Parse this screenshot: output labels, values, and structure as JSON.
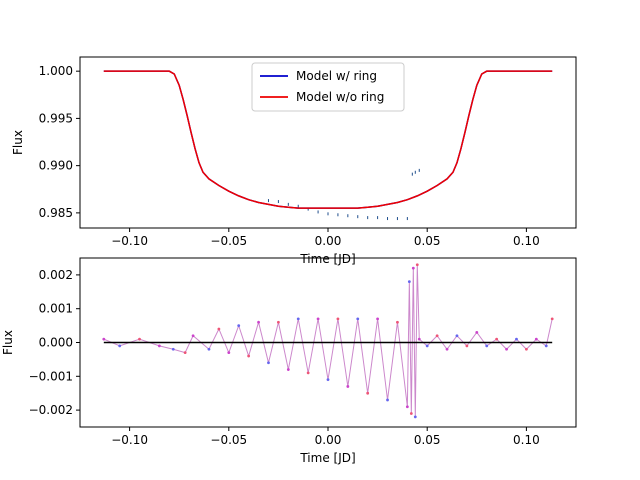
{
  "chart_data": [
    {
      "type": "line",
      "xlabel": "Time [JD]",
      "ylabel": "Flux",
      "xlim": [
        -0.125,
        0.125
      ],
      "ylim": [
        0.9834,
        1.0015
      ],
      "xticks": [
        -0.1,
        -0.05,
        0.0,
        0.05,
        0.1
      ],
      "xtick_labels": [
        "−0.10",
        "−0.05",
        "0.00",
        "0.05",
        "0.10"
      ],
      "yticks": [
        0.985,
        0.99,
        0.995,
        1.0
      ],
      "ytick_labels": [
        "0.985",
        "0.990",
        "0.995",
        "1.000"
      ],
      "grid": false,
      "legend_position": "top-center",
      "series": [
        {
          "name": "Model w/ ring",
          "color": "#0000cc",
          "x": [
            -0.113,
            -0.09,
            -0.08,
            -0.0775,
            -0.075,
            -0.073,
            -0.071,
            -0.069,
            -0.067,
            -0.065,
            -0.063,
            -0.06,
            -0.055,
            -0.05,
            -0.045,
            -0.04,
            -0.035,
            -0.03,
            -0.025,
            -0.02,
            -0.015,
            -0.01,
            -0.005,
            0.0,
            0.005,
            0.01,
            0.015,
            0.02,
            0.025,
            0.03,
            0.035,
            0.04,
            0.045,
            0.05,
            0.055,
            0.06,
            0.063,
            0.065,
            0.067,
            0.069,
            0.071,
            0.073,
            0.075,
            0.0775,
            0.08,
            0.09,
            0.113
          ],
          "y": [
            1.0,
            1.0,
            1.0,
            0.9997,
            0.9985,
            0.997,
            0.9953,
            0.9935,
            0.9918,
            0.9903,
            0.9893,
            0.9886,
            0.9879,
            0.9873,
            0.9868,
            0.9864,
            0.9861,
            0.9859,
            0.9857,
            0.9856,
            0.9855,
            0.9855,
            0.9855,
            0.9855,
            0.9855,
            0.9855,
            0.9855,
            0.9856,
            0.9857,
            0.9859,
            0.9861,
            0.9864,
            0.9868,
            0.9873,
            0.9879,
            0.9886,
            0.9893,
            0.9903,
            0.9918,
            0.9935,
            0.9953,
            0.997,
            0.9985,
            0.9997,
            1.0,
            1.0,
            1.0
          ]
        },
        {
          "name": "Model w/o ring",
          "color": "#ee0000",
          "x": [
            -0.113,
            -0.09,
            -0.08,
            -0.0775,
            -0.075,
            -0.073,
            -0.071,
            -0.069,
            -0.067,
            -0.065,
            -0.063,
            -0.06,
            -0.055,
            -0.05,
            -0.045,
            -0.04,
            -0.035,
            -0.03,
            -0.025,
            -0.02,
            -0.015,
            -0.01,
            -0.005,
            0.0,
            0.005,
            0.01,
            0.015,
            0.02,
            0.025,
            0.03,
            0.035,
            0.04,
            0.045,
            0.05,
            0.055,
            0.06,
            0.063,
            0.065,
            0.067,
            0.069,
            0.071,
            0.073,
            0.075,
            0.0775,
            0.08,
            0.09,
            0.113
          ],
          "y": [
            1.0,
            1.0,
            1.0,
            0.9997,
            0.9985,
            0.997,
            0.9953,
            0.9935,
            0.9918,
            0.9903,
            0.9893,
            0.9886,
            0.9879,
            0.9873,
            0.9868,
            0.9864,
            0.9861,
            0.9859,
            0.9857,
            0.9856,
            0.9855,
            0.9855,
            0.9855,
            0.9855,
            0.9855,
            0.9855,
            0.9855,
            0.9856,
            0.9857,
            0.9859,
            0.9861,
            0.9864,
            0.9868,
            0.9873,
            0.9879,
            0.9886,
            0.9893,
            0.9903,
            0.9918,
            0.9935,
            0.9953,
            0.997,
            0.9985,
            0.9997,
            1.0,
            1.0,
            1.0
          ]
        }
      ],
      "observations": {
        "color": "#1f4e8c",
        "x": [
          -0.03,
          -0.025,
          -0.02,
          -0.015,
          -0.01,
          -0.005,
          0.0,
          0.005,
          0.01,
          0.015,
          0.02,
          0.025,
          0.03,
          0.035,
          0.04,
          0.0425,
          0.044,
          0.046
        ],
        "y": [
          0.9863,
          0.9862,
          0.9859,
          0.9857,
          0.9854,
          0.9851,
          0.9849,
          0.9848,
          0.9847,
          0.9846,
          0.9845,
          0.9845,
          0.9844,
          0.9844,
          0.9844,
          0.9891,
          0.9893,
          0.9895
        ]
      }
    },
    {
      "type": "scatter",
      "xlabel": "Time [JD]",
      "ylabel": "Flux",
      "xlim": [
        -0.125,
        0.125
      ],
      "ylim": [
        -0.0025,
        0.0025
      ],
      "xticks": [
        -0.1,
        -0.05,
        0.0,
        0.05,
        0.1
      ],
      "xtick_labels": [
        "−0.10",
        "−0.05",
        "0.00",
        "0.05",
        "0.10"
      ],
      "yticks": [
        -0.002,
        -0.001,
        0.0,
        0.001,
        0.002
      ],
      "ytick_labels": [
        "−0.002",
        "−0.001",
        "0.000",
        "0.001",
        "0.002"
      ],
      "grid": false,
      "zero_line_color": "#000000",
      "residual_color": "#cc88cc",
      "point_colors": [
        "#cc44cc",
        "#6666ee",
        "#ee5577"
      ],
      "points": {
        "x": [
          -0.113,
          -0.105,
          -0.095,
          -0.085,
          -0.078,
          -0.072,
          -0.068,
          -0.06,
          -0.055,
          -0.05,
          -0.045,
          -0.04,
          -0.035,
          -0.03,
          -0.025,
          -0.02,
          -0.015,
          -0.01,
          -0.005,
          0.0,
          0.005,
          0.01,
          0.015,
          0.02,
          0.025,
          0.03,
          0.035,
          0.04,
          0.041,
          0.042,
          0.043,
          0.044,
          0.045,
          0.046,
          0.05,
          0.055,
          0.06,
          0.065,
          0.07,
          0.075,
          0.08,
          0.085,
          0.09,
          0.095,
          0.1,
          0.105,
          0.11,
          0.113
        ],
        "y": [
          0.0001,
          -0.0001,
          0.0001,
          -0.0001,
          -0.0002,
          -0.0003,
          0.0002,
          -0.0002,
          0.0004,
          -0.0003,
          0.0005,
          -0.0004,
          0.0006,
          -0.0006,
          0.0006,
          -0.0008,
          0.0007,
          -0.0009,
          0.0007,
          -0.0011,
          0.0007,
          -0.0013,
          0.0007,
          -0.0015,
          0.0007,
          -0.0017,
          0.0006,
          -0.0019,
          0.0018,
          -0.0021,
          0.0022,
          -0.0022,
          0.0023,
          0.0001,
          -0.0001,
          0.0002,
          -0.0002,
          0.0002,
          -0.0001,
          0.0003,
          -0.0001,
          0.0001,
          -0.0002,
          0.0001,
          -0.0002,
          0.0001,
          -0.0001,
          0.0007
        ]
      }
    }
  ]
}
